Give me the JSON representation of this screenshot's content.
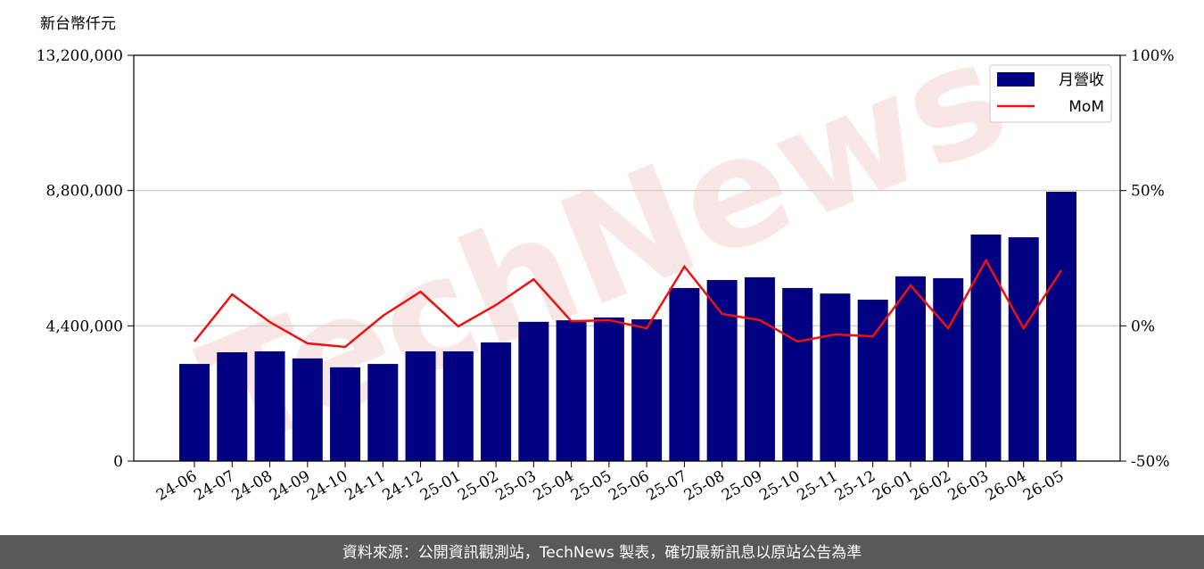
{
  "chart_data": {
    "type": "bar",
    "y_unit_label": "新台幣仟元",
    "watermark": "TechNews",
    "footer": "資料來源：公開資訊觀測站，TechNews 製表，確切最新訊息以原站公告為準",
    "categories": [
      "24-06",
      "24-07",
      "24-08",
      "24-09",
      "24-10",
      "24-11",
      "24-12",
      "25-01",
      "25-02",
      "25-03",
      "25-04",
      "25-05",
      "25-06",
      "25-07",
      "25-08",
      "25-09",
      "25-10",
      "25-11",
      "25-12",
      "26-01",
      "26-02",
      "26-03",
      "26-04",
      "26-05"
    ],
    "series": [
      {
        "name": "月營收",
        "type": "bar",
        "color": "#000080",
        "values": [
          3160000,
          3540000,
          3570000,
          3340000,
          3050000,
          3160000,
          3570000,
          3570000,
          3860000,
          4530000,
          4580000,
          4670000,
          4610000,
          5630000,
          5890000,
          5980000,
          5630000,
          5450000,
          5250000,
          6010000,
          5950000,
          7370000,
          7280000,
          8760000
        ]
      },
      {
        "name": "MoM",
        "type": "line",
        "axis": "y2",
        "color": "#ee1111",
        "values": [
          -5.8,
          11.6,
          1.4,
          -6.5,
          -7.8,
          3.7,
          12.6,
          -0.2,
          7.7,
          17.2,
          1.7,
          2.1,
          -0.9,
          21.9,
          4.4,
          2.1,
          -5.8,
          -3.2,
          -3.9,
          14.9,
          -0.9,
          24.2,
          -0.9,
          20.5
        ]
      }
    ],
    "ylim": [
      0,
      13200000
    ],
    "yticks": [
      0,
      {
        "value": 4400000,
        "label": "4,400,000"
      },
      {
        "value": 8800000,
        "label": "8,800,000"
      },
      {
        "value": 13200000,
        "label": "13,200,000"
      }
    ],
    "y2lim": [
      -50,
      100
    ],
    "y2ticks": [
      {
        "value": -50,
        "label": "-50%"
      },
      {
        "value": 0,
        "label": "0%"
      },
      {
        "value": 50,
        "label": "50%"
      },
      {
        "value": 100,
        "label": "100%"
      }
    ],
    "grid": true,
    "legend": "upper right"
  }
}
